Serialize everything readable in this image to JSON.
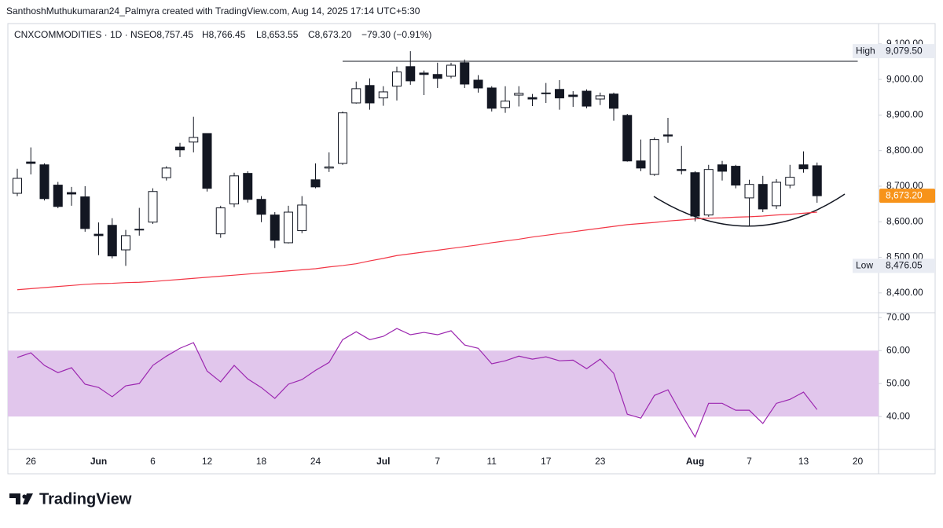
{
  "header": {
    "author_line": "SanthoshMuthukumaran24_Palmyra created with TradingView.com, Aug 14, 2025 17:14 UTC+5:30"
  },
  "footer": {
    "brand": "TradingView"
  },
  "chart_data": [
    {
      "type": "candlestick",
      "symbol_line": "CNXCOMMODITIES · 1D · NSE",
      "legend": {
        "open": "O8,757.45",
        "high": "H8,766.45",
        "low": "L8,653.55",
        "close": "C8,673.20",
        "change": "−79.30 (−0.91%)"
      },
      "categories": [
        null,
        "26",
        null,
        null,
        null,
        null,
        "Jun",
        null,
        null,
        null,
        "6",
        null,
        null,
        null,
        "12",
        null,
        null,
        null,
        "18",
        null,
        null,
        null,
        "24",
        null,
        null,
        null,
        null,
        "Jul",
        null,
        null,
        null,
        "7",
        null,
        null,
        null,
        "11",
        null,
        null,
        null,
        "17",
        null,
        null,
        null,
        "23",
        null,
        null,
        null,
        null,
        null,
        null,
        "Aug",
        null,
        null,
        null,
        "7",
        null,
        null,
        null,
        "13",
        null,
        null,
        null,
        "20"
      ],
      "open": [
        8680,
        8768,
        8760,
        8703,
        8682,
        8670,
        8565,
        8590,
        8521,
        8577,
        8599,
        8724,
        8810,
        8824,
        8848,
        8566,
        8650,
        8736,
        8663,
        8619,
        8541,
        8575,
        8718,
        8751,
        8764,
        8934,
        8983,
        8948,
        8981,
        9036,
        9018,
        9014,
        9009,
        9047,
        8998,
        8976,
        8921,
        8956,
        8949,
        8962,
        8972,
        8956,
        8967,
        8945,
        8959,
        8899,
        8771,
        8733,
        8844,
        8747,
        8738,
        8619,
        8760,
        8756,
        8667,
        8705,
        8645,
        8703,
        8760,
        8757.45,
        null,
        null,
        null
      ],
      "high": [
        8749,
        8809,
        8764,
        8712,
        8698,
        8700,
        8598,
        8610,
        8577,
        8639,
        8694,
        8756,
        8822,
        8895,
        8848,
        8645,
        8738,
        8742,
        8672,
        8627,
        8645,
        8672,
        8764,
        8795,
        8910,
        8994,
        9003,
        8981,
        9036,
        9079.5,
        9025,
        9047,
        9047,
        9056,
        9012,
        8981,
        8981,
        8981,
        8959,
        8990,
        8998,
        8967,
        8972,
        8963,
        8963,
        8903,
        8831,
        8837,
        8892,
        8813,
        8742,
        8760,
        8771,
        8760,
        8718,
        8729,
        8720,
        8760,
        8798,
        8766.45,
        null,
        null,
        null
      ],
      "low": [
        8672,
        8733,
        8660,
        8638,
        8645,
        8572,
        8506,
        8497,
        8476.05,
        8561,
        8594,
        8716,
        8782,
        8795,
        8685,
        8555,
        8641,
        8654,
        8599,
        8526,
        8539,
        8568,
        8694,
        8740,
        8760,
        8932,
        8915,
        8926,
        8941,
        8985,
        8956,
        8976,
        9003,
        8976,
        8963,
        8910,
        8906,
        8924,
        8925,
        8934,
        8915,
        8923,
        8919,
        8928,
        8884,
        8769,
        8742,
        8729,
        8822,
        8733,
        8601,
        8614,
        8716,
        8694,
        8588,
        8627,
        8636,
        8694,
        8738,
        8653.55,
        null,
        null,
        null
      ],
      "close": [
        8722,
        8764,
        8665,
        8643,
        8678,
        8581,
        8561,
        8504,
        8561,
        8579,
        8685,
        8751,
        8802,
        8837,
        8694,
        8639,
        8729,
        8663,
        8621,
        8548,
        8627,
        8647,
        8698,
        8754,
        8906,
        8974,
        8934,
        8965,
        9021,
        8996,
        9014,
        9003,
        9040,
        8987,
        8976,
        8919,
        8939,
        8961,
        8945,
        8960,
        8948,
        8952,
        8925,
        8954,
        8919,
        8771,
        8751,
        8831,
        8841,
        8744,
        8616,
        8747,
        8742,
        8703,
        8705,
        8636,
        8711,
        8725,
        8749,
        8673.2,
        null,
        null,
        null
      ],
      "up_color": "#ffffff",
      "down_color": "#131722",
      "ma": {
        "color": "#f23645",
        "values": [
          8409,
          8412,
          8415,
          8418,
          8421,
          8424,
          8426,
          8427,
          8429,
          8430,
          8432,
          8435,
          8438,
          8441,
          8444,
          8447,
          8450,
          8453,
          8456,
          8459,
          8462,
          8465,
          8468,
          8473,
          8477,
          8482,
          8490,
          8497,
          8505,
          8510,
          8515,
          8520,
          8525,
          8530,
          8535,
          8541,
          8546,
          8551,
          8557,
          8562,
          8567,
          8572,
          8577,
          8582,
          8587,
          8592,
          8595,
          8598,
          8602,
          8605,
          8608,
          8610,
          8611,
          8613,
          8614,
          8616,
          8619,
          8621,
          8624,
          8627,
          null,
          null,
          null
        ]
      },
      "ylim": [
        8351,
        9157
      ],
      "yticks": [
        {
          "value": 9100,
          "label": "9,100.00"
        },
        {
          "value": 9000,
          "label": "9,000.00"
        },
        {
          "value": 8900,
          "label": "8,900.00"
        },
        {
          "value": 8800,
          "label": "8,800.00"
        },
        {
          "value": 8700,
          "label": "8,700.00"
        },
        {
          "value": 8600,
          "label": "8,600.00"
        },
        {
          "value": 8500,
          "label": "8,500.00"
        },
        {
          "value": 8400,
          "label": "8,400.00"
        }
      ],
      "last_price": {
        "value": 8673.2,
        "label": "8,673.20",
        "color": "#f7931a"
      },
      "high_marker": {
        "name": "High",
        "value": 9079.5,
        "label": "9,079.50"
      },
      "low_marker": {
        "name": "Low",
        "value": 8476.05,
        "label": "8,476.05"
      },
      "resistance": 9051
    },
    {
      "type": "line",
      "values": [
        57.9,
        59.3,
        55.5,
        53.3,
        54.8,
        49.8,
        48.8,
        46.0,
        49.3,
        50.0,
        55.5,
        58.3,
        60.7,
        62.4,
        53.8,
        50.5,
        55.5,
        51.4,
        48.8,
        45.5,
        49.8,
        51.2,
        54.0,
        56.4,
        63.3,
        65.7,
        63.3,
        64.3,
        66.7,
        64.8,
        65.5,
        64.8,
        66.0,
        61.7,
        60.7,
        56.0,
        56.9,
        58.3,
        57.4,
        58.1,
        56.9,
        57.1,
        54.5,
        57.4,
        53.1,
        40.7,
        39.5,
        46.4,
        48.1,
        40.7,
        33.8,
        44.0,
        44.0,
        41.9,
        41.9,
        37.9,
        44.0,
        45.2,
        47.4,
        42.1,
        null,
        null,
        null
      ],
      "color": "#9c27b0",
      "band": {
        "range": [
          40,
          60
        ],
        "color": "#e1c6ec"
      },
      "ylim": [
        30.5,
        71
      ],
      "yticks": [
        {
          "value": 70,
          "label": "70.00"
        },
        {
          "value": 60,
          "label": "60.00"
        },
        {
          "value": 50,
          "label": "50.00"
        },
        {
          "value": 40,
          "label": "40.00"
        }
      ]
    }
  ]
}
